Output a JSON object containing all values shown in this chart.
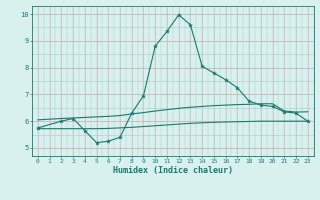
{
  "line1_x": [
    0,
    2,
    3,
    4,
    5,
    6,
    7,
    8,
    9,
    10,
    11,
    12,
    13,
    14,
    15,
    16,
    17,
    18,
    19,
    20,
    21,
    22,
    23
  ],
  "line1_y": [
    5.75,
    6.0,
    6.1,
    5.65,
    5.2,
    5.25,
    5.4,
    6.3,
    6.95,
    8.8,
    9.35,
    9.97,
    9.6,
    8.05,
    7.8,
    7.55,
    7.25,
    6.75,
    6.6,
    6.55,
    6.35,
    6.3,
    6.0
  ],
  "line2_x": [
    0,
    2,
    3,
    4,
    5,
    6,
    7,
    8,
    9,
    10,
    11,
    12,
    13,
    14,
    15,
    16,
    17,
    18,
    19,
    20,
    21,
    22,
    23
  ],
  "line2_y": [
    6.05,
    6.1,
    6.12,
    6.14,
    6.16,
    6.18,
    6.21,
    6.27,
    6.32,
    6.38,
    6.43,
    6.48,
    6.52,
    6.55,
    6.58,
    6.6,
    6.62,
    6.63,
    6.65,
    6.65,
    6.38,
    6.34,
    6.35
  ],
  "line3_x": [
    0,
    2,
    3,
    4,
    5,
    6,
    7,
    8,
    9,
    10,
    11,
    12,
    13,
    14,
    15,
    16,
    17,
    18,
    19,
    20,
    21,
    22,
    23
  ],
  "line3_y": [
    5.72,
    5.72,
    5.72,
    5.72,
    5.72,
    5.73,
    5.75,
    5.77,
    5.8,
    5.83,
    5.86,
    5.89,
    5.92,
    5.94,
    5.96,
    5.97,
    5.98,
    5.99,
    6.0,
    6.0,
    6.0,
    6.0,
    6.0
  ],
  "line_color": "#1a7a6e",
  "bg_color": "#d8f0ee",
  "pink_grid_color": "#d4b0b0",
  "teal_grid_color": "#a8ccc8",
  "xlabel": "Humidex (Indice chaleur)",
  "ylim": [
    4.7,
    10.3
  ],
  "xlim": [
    -0.5,
    23.5
  ],
  "yticks": [
    5,
    6,
    7,
    8,
    9,
    10
  ],
  "xticks": [
    0,
    1,
    2,
    3,
    4,
    5,
    6,
    7,
    8,
    9,
    10,
    11,
    12,
    13,
    14,
    15,
    16,
    17,
    18,
    19,
    20,
    21,
    22,
    23
  ]
}
